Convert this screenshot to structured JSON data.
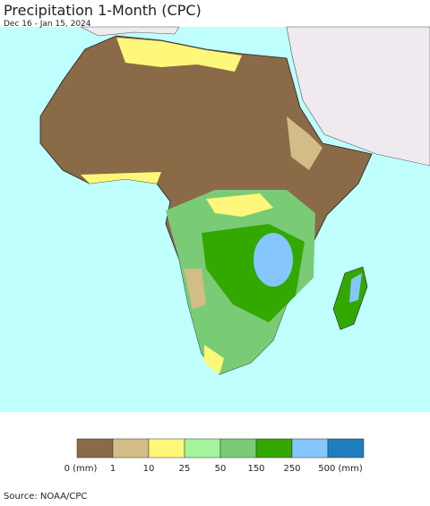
{
  "header": {
    "title": "Precipitation 1-Month (CPC)",
    "subtitle": "Dec 16 - Jan 15, 2024"
  },
  "legend": {
    "colors": [
      "#8b6a48",
      "#d2bd86",
      "#fdf87a",
      "#a2f59b",
      "#7acb76",
      "#33a800",
      "#84c6fd",
      "#1f7ebd"
    ],
    "labels": [
      "0 (mm)",
      "1",
      "10",
      "25",
      "50",
      "150",
      "250",
      "500 (mm)"
    ]
  },
  "footer": {
    "source": "Source: NOAA/CPC"
  }
}
